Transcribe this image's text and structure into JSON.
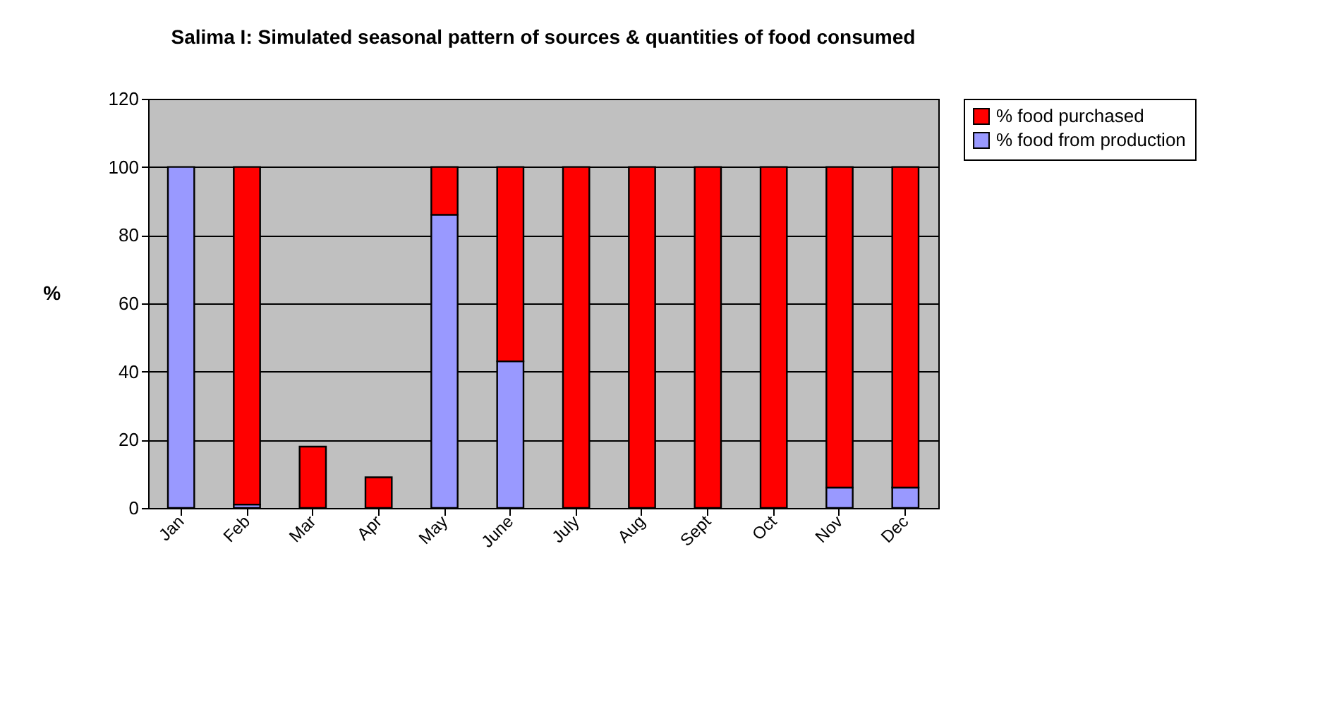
{
  "chart_data": {
    "type": "bar",
    "title": "Salima I: Simulated seasonal pattern of sources & quantities of food consumed",
    "ylabel": "%",
    "categories": [
      "Jan",
      "Feb",
      "Mar",
      "Apr",
      "May",
      "June",
      "July",
      "Aug",
      "Sept",
      "Oct",
      "Nov",
      "Dec"
    ],
    "stacked": true,
    "series": [
      {
        "name": "% food from production",
        "color": "#9999ff",
        "values": [
          100,
          1,
          0,
          0,
          86,
          43,
          0,
          0,
          0,
          0,
          6,
          6
        ]
      },
      {
        "name": "% food purchased",
        "color": "#ff0000",
        "values": [
          0,
          99,
          18,
          9,
          14,
          57,
          100,
          100,
          100,
          100,
          94,
          94
        ]
      }
    ],
    "ylim": [
      0,
      120
    ],
    "yticks": [
      0,
      20,
      40,
      60,
      80,
      100,
      120
    ],
    "grid": "y",
    "legend": "right"
  }
}
